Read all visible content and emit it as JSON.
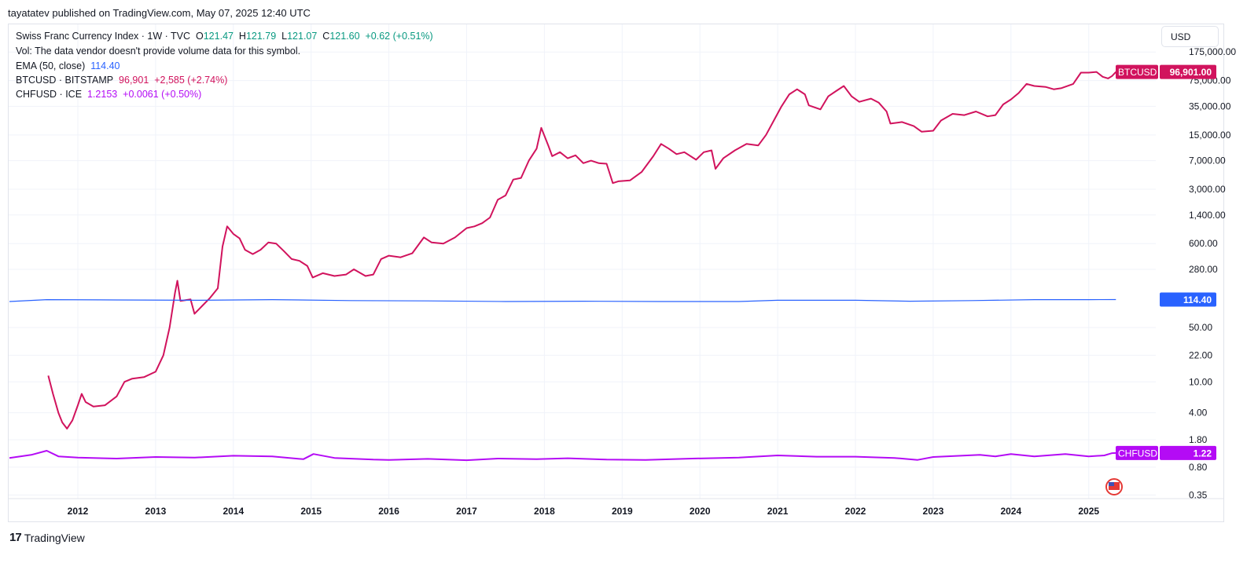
{
  "header": "tayatatev published on TradingView.com, May 07, 2025 12:40 UTC",
  "legend": {
    "main": {
      "name": "Swiss Franc Currency Index · 1W · TVC",
      "o_label": "O",
      "o": "121.47",
      "h_label": "H",
      "h": "121.79",
      "l_label": "L",
      "l": "121.07",
      "c_label": "C",
      "c": "121.60",
      "change": "+0.62 (+0.51%)"
    },
    "vol": "Vol: The data vendor doesn't provide volume data for this symbol.",
    "ema": {
      "name": "EMA (50, close)",
      "value": "114.40"
    },
    "btc": {
      "name": "BTCUSD · BITSTAMP",
      "value": "96,901",
      "change": "+2,585 (+2.74%)"
    },
    "chf": {
      "name": "CHFUSD · ICE",
      "value": "1.2153",
      "change": "+0.0061 (+0.50%)"
    }
  },
  "currency_button": "USD",
  "footer": {
    "brand": "TradingView"
  },
  "colors": {
    "btc": "#d1135d",
    "ema": "#2962ff",
    "chf": "#b40bf5",
    "grid": "#f0f3fa"
  },
  "chart_data": {
    "type": "line",
    "log_scale": true,
    "grid": true,
    "x_ticks": [
      "2012",
      "2013",
      "2014",
      "2015",
      "2016",
      "2017",
      "2018",
      "2019",
      "2020",
      "2021",
      "2022",
      "2023",
      "2024",
      "2025"
    ],
    "y_ticks": [
      "175,000.00",
      "75,000.00",
      "35,000.00",
      "15,000.00",
      "7,000.00",
      "3,000.00",
      "1,400.00",
      "600.00",
      "280.00",
      "50.00",
      "22.00",
      "10.00",
      "4.00",
      "1.80",
      "0.80",
      "0.35"
    ],
    "ylim": [
      0.3,
      230000
    ],
    "xlim": [
      2011.12,
      2025.75
    ],
    "series": [
      {
        "name": "BTCUSD",
        "color": "#d1135d",
        "label": "BTCUSD",
        "last": "96,901.00",
        "points": [
          [
            2011.62,
            12
          ],
          [
            2011.68,
            7
          ],
          [
            2011.75,
            4
          ],
          [
            2011.8,
            3
          ],
          [
            2011.86,
            2.5
          ],
          [
            2011.93,
            3.2
          ],
          [
            2012.0,
            5
          ],
          [
            2012.05,
            7
          ],
          [
            2012.1,
            5.5
          ],
          [
            2012.2,
            4.8
          ],
          [
            2012.35,
            5
          ],
          [
            2012.5,
            6.5
          ],
          [
            2012.6,
            10
          ],
          [
            2012.7,
            11
          ],
          [
            2012.85,
            11.5
          ],
          [
            2013.0,
            13.5
          ],
          [
            2013.1,
            22
          ],
          [
            2013.18,
            50
          ],
          [
            2013.25,
            140
          ],
          [
            2013.28,
            200
          ],
          [
            2013.32,
            110
          ],
          [
            2013.45,
            115
          ],
          [
            2013.5,
            75
          ],
          [
            2013.6,
            95
          ],
          [
            2013.7,
            120
          ],
          [
            2013.8,
            160
          ],
          [
            2013.86,
            550
          ],
          [
            2013.92,
            1000
          ],
          [
            2014.0,
            800
          ],
          [
            2014.08,
            700
          ],
          [
            2014.15,
            500
          ],
          [
            2014.25,
            440
          ],
          [
            2014.35,
            500
          ],
          [
            2014.45,
            620
          ],
          [
            2014.55,
            600
          ],
          [
            2014.65,
            480
          ],
          [
            2014.75,
            380
          ],
          [
            2014.85,
            360
          ],
          [
            2014.95,
            310
          ],
          [
            2015.02,
            220
          ],
          [
            2015.15,
            250
          ],
          [
            2015.3,
            230
          ],
          [
            2015.45,
            240
          ],
          [
            2015.55,
            280
          ],
          [
            2015.7,
            230
          ],
          [
            2015.8,
            240
          ],
          [
            2015.9,
            380
          ],
          [
            2016.0,
            420
          ],
          [
            2016.15,
            400
          ],
          [
            2016.3,
            450
          ],
          [
            2016.45,
            720
          ],
          [
            2016.55,
            620
          ],
          [
            2016.7,
            600
          ],
          [
            2016.85,
            720
          ],
          [
            2017.0,
            950
          ],
          [
            2017.1,
            1000
          ],
          [
            2017.2,
            1100
          ],
          [
            2017.3,
            1300
          ],
          [
            2017.4,
            2200
          ],
          [
            2017.5,
            2500
          ],
          [
            2017.6,
            4000
          ],
          [
            2017.7,
            4200
          ],
          [
            2017.8,
            7000
          ],
          [
            2017.9,
            10000
          ],
          [
            2017.96,
            18500
          ],
          [
            2018.05,
            11000
          ],
          [
            2018.1,
            8000
          ],
          [
            2018.2,
            9000
          ],
          [
            2018.3,
            7500
          ],
          [
            2018.4,
            8200
          ],
          [
            2018.5,
            6500
          ],
          [
            2018.6,
            7000
          ],
          [
            2018.7,
            6500
          ],
          [
            2018.8,
            6400
          ],
          [
            2018.88,
            3600
          ],
          [
            2018.95,
            3800
          ],
          [
            2019.1,
            3900
          ],
          [
            2019.25,
            5000
          ],
          [
            2019.4,
            8000
          ],
          [
            2019.5,
            11500
          ],
          [
            2019.6,
            10000
          ],
          [
            2019.7,
            8500
          ],
          [
            2019.8,
            9000
          ],
          [
            2019.95,
            7200
          ],
          [
            2020.05,
            9000
          ],
          [
            2020.15,
            9500
          ],
          [
            2020.2,
            5500
          ],
          [
            2020.3,
            7500
          ],
          [
            2020.45,
            9500
          ],
          [
            2020.6,
            11500
          ],
          [
            2020.75,
            11000
          ],
          [
            2020.85,
            15000
          ],
          [
            2020.95,
            23000
          ],
          [
            2021.05,
            35000
          ],
          [
            2021.15,
            50000
          ],
          [
            2021.25,
            58000
          ],
          [
            2021.35,
            50000
          ],
          [
            2021.4,
            36000
          ],
          [
            2021.55,
            32000
          ],
          [
            2021.65,
            47000
          ],
          [
            2021.75,
            55000
          ],
          [
            2021.85,
            64000
          ],
          [
            2021.95,
            47000
          ],
          [
            2022.05,
            40000
          ],
          [
            2022.2,
            44000
          ],
          [
            2022.3,
            39000
          ],
          [
            2022.4,
            30000
          ],
          [
            2022.45,
            21000
          ],
          [
            2022.6,
            22000
          ],
          [
            2022.75,
            19500
          ],
          [
            2022.85,
            16500
          ],
          [
            2023.0,
            17000
          ],
          [
            2023.1,
            23000
          ],
          [
            2023.25,
            28000
          ],
          [
            2023.4,
            27000
          ],
          [
            2023.55,
            30000
          ],
          [
            2023.7,
            26000
          ],
          [
            2023.8,
            27000
          ],
          [
            2023.9,
            37000
          ],
          [
            2024.0,
            43000
          ],
          [
            2024.1,
            52000
          ],
          [
            2024.2,
            68000
          ],
          [
            2024.3,
            64000
          ],
          [
            2024.45,
            62000
          ],
          [
            2024.55,
            58000
          ],
          [
            2024.65,
            60000
          ],
          [
            2024.8,
            68000
          ],
          [
            2024.9,
            95000
          ],
          [
            2025.0,
            95000
          ],
          [
            2025.1,
            97000
          ],
          [
            2025.18,
            84000
          ],
          [
            2025.25,
            80000
          ],
          [
            2025.3,
            86000
          ],
          [
            2025.35,
            96901
          ]
        ]
      },
      {
        "name": "EMA (50, close)",
        "color": "#2962ff",
        "label": "",
        "last": "114.40",
        "points": [
          [
            2011.12,
            108
          ],
          [
            2011.6,
            114
          ],
          [
            2012.5,
            113
          ],
          [
            2013.5,
            112
          ],
          [
            2014.5,
            114
          ],
          [
            2015.5,
            111
          ],
          [
            2016.5,
            110
          ],
          [
            2017.5,
            108
          ],
          [
            2018.5,
            109
          ],
          [
            2019.5,
            108
          ],
          [
            2020.5,
            108
          ],
          [
            2021.0,
            112
          ],
          [
            2022.0,
            112
          ],
          [
            2022.7,
            109
          ],
          [
            2023.5,
            111
          ],
          [
            2024.3,
            114
          ],
          [
            2025.0,
            114
          ],
          [
            2025.35,
            114.4
          ]
        ]
      },
      {
        "name": "CHFUSD",
        "color": "#b40bf5",
        "label": "CHFUSD",
        "last": "1.22",
        "points": [
          [
            2011.12,
            1.05
          ],
          [
            2011.4,
            1.15
          ],
          [
            2011.6,
            1.3
          ],
          [
            2011.75,
            1.1
          ],
          [
            2012.0,
            1.06
          ],
          [
            2012.5,
            1.03
          ],
          [
            2013.0,
            1.08
          ],
          [
            2013.5,
            1.06
          ],
          [
            2014.0,
            1.12
          ],
          [
            2014.5,
            1.1
          ],
          [
            2014.9,
            1.01
          ],
          [
            2015.03,
            1.18
          ],
          [
            2015.3,
            1.05
          ],
          [
            2015.8,
            1.0
          ],
          [
            2016.0,
            0.99
          ],
          [
            2016.5,
            1.02
          ],
          [
            2017.0,
            0.98
          ],
          [
            2017.4,
            1.03
          ],
          [
            2017.9,
            1.01
          ],
          [
            2018.3,
            1.04
          ],
          [
            2018.8,
            1.0
          ],
          [
            2019.3,
            0.99
          ],
          [
            2019.9,
            1.03
          ],
          [
            2020.5,
            1.06
          ],
          [
            2021.0,
            1.13
          ],
          [
            2021.5,
            1.09
          ],
          [
            2022.0,
            1.09
          ],
          [
            2022.5,
            1.05
          ],
          [
            2022.8,
            0.99
          ],
          [
            2023.0,
            1.08
          ],
          [
            2023.6,
            1.15
          ],
          [
            2023.8,
            1.1
          ],
          [
            2024.0,
            1.18
          ],
          [
            2024.3,
            1.1
          ],
          [
            2024.7,
            1.18
          ],
          [
            2025.0,
            1.1
          ],
          [
            2025.2,
            1.13
          ],
          [
            2025.3,
            1.21
          ],
          [
            2025.35,
            1.2153
          ]
        ]
      }
    ]
  }
}
